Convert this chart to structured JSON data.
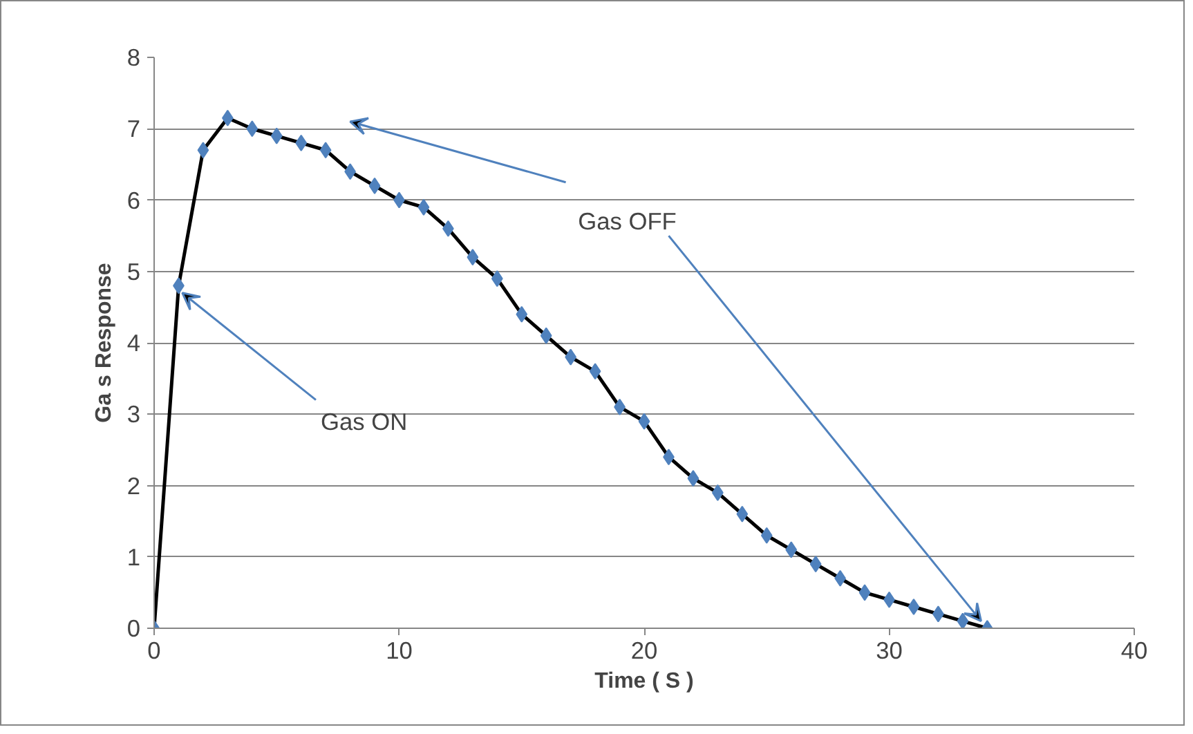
{
  "chart_data": {
    "type": "line",
    "xlabel": "Time ( S )",
    "ylabel": "Ga s Response",
    "x": [
      0,
      1,
      2,
      3,
      4,
      5,
      6,
      7,
      8,
      9,
      10,
      11,
      12,
      13,
      14,
      15,
      16,
      17,
      18,
      19,
      20,
      21,
      22,
      23,
      24,
      25,
      26,
      27,
      28,
      29,
      30,
      31,
      32,
      33,
      34
    ],
    "series": [
      {
        "color": "#4f81bd",
        "values": [
          0,
          4.8,
          6.7,
          7.15,
          7.0,
          6.9,
          6.8,
          6.7,
          6.4,
          6.2,
          6.0,
          5.9,
          5.6,
          5.2,
          4.9,
          4.4,
          4.1,
          3.8,
          3.6,
          3.1,
          2.9,
          2.4,
          2.1,
          1.9,
          1.6,
          1.3,
          1.1,
          0.9,
          0.7,
          0.5,
          0.4,
          0.3,
          0.2,
          0.1,
          0
        ]
      }
    ],
    "xlim": [
      0,
      40
    ],
    "xticks": [
      0,
      10,
      20,
      30,
      40
    ],
    "ylim": [
      0,
      8
    ],
    "yticks": [
      0,
      1,
      2,
      3,
      4,
      5,
      6,
      7,
      8
    ],
    "grid": "y",
    "marker": "diamond",
    "line_style": "solid",
    "annotations": [
      {
        "text": "Gas ON",
        "x": 1,
        "y": 4.8
      },
      {
        "text": "Gas OFF",
        "x": 34,
        "y": 0
      }
    ]
  }
}
